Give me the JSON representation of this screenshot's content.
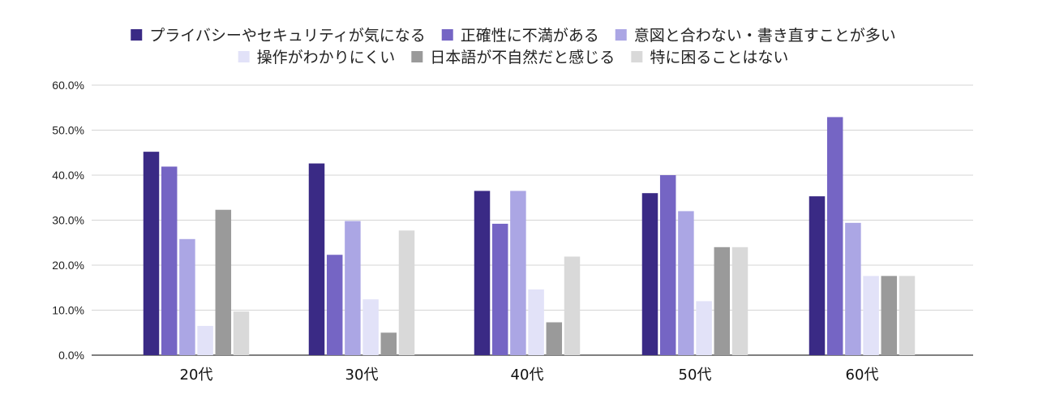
{
  "chart_data": {
    "type": "bar",
    "categories": [
      "20代",
      "30代",
      "40代",
      "50代",
      "60代"
    ],
    "series": [
      {
        "name": "プライバシーやセキュリティが気になる",
        "color": "#3a2a85",
        "values": [
          45.2,
          42.6,
          36.5,
          36.0,
          35.3
        ]
      },
      {
        "name": "正確性に不満がある",
        "color": "#7565c4",
        "values": [
          41.9,
          22.3,
          29.2,
          40.0,
          52.9
        ]
      },
      {
        "name": "意図と合わない・書き直すことが多い",
        "color": "#aba6e4",
        "values": [
          25.8,
          29.8,
          36.5,
          32.0,
          29.4
        ]
      },
      {
        "name": "操作がわかりにくい",
        "color": "#e2e2f8",
        "values": [
          6.5,
          12.4,
          14.6,
          12.0,
          17.6
        ]
      },
      {
        "name": "日本語が不自然だと感じる",
        "color": "#9a9a9a",
        "values": [
          32.3,
          5.0,
          7.3,
          24.0,
          17.6
        ]
      },
      {
        "name": "特に困ることはない",
        "color": "#d9d9d9",
        "values": [
          9.7,
          27.7,
          21.9,
          24.0,
          17.6
        ]
      }
    ],
    "yticks": [
      "0.0%",
      "10.0%",
      "20.0%",
      "30.0%",
      "40.0%",
      "50.0%",
      "60.0%"
    ],
    "ylim": [
      0,
      60
    ],
    "grid": true,
    "legend_position": "top"
  }
}
